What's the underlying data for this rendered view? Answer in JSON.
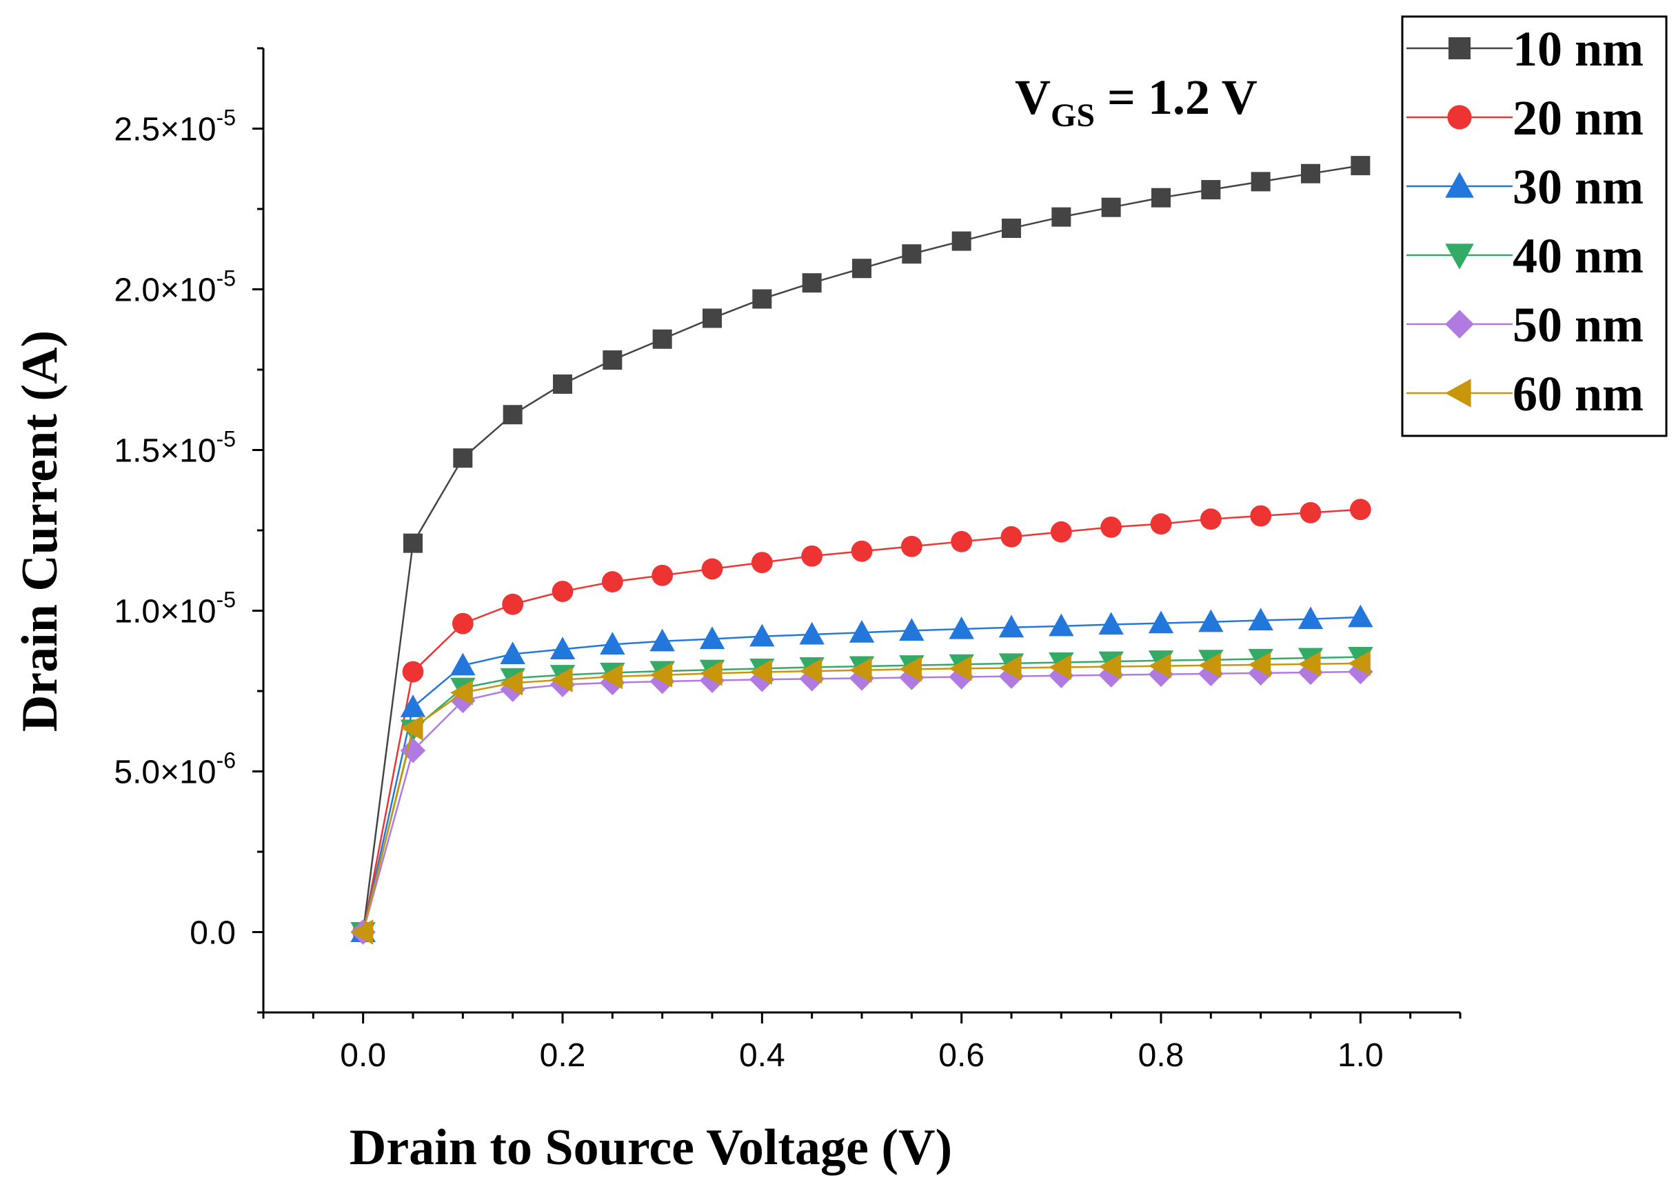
{
  "chart_data": {
    "type": "line",
    "title": "",
    "xlabel": "Drain to Source Voltage (V)",
    "ylabel": "Drain Current (A)",
    "xlim": [
      -0.1,
      1.1
    ],
    "ylim": [
      -2.5e-06,
      2.75e-05
    ],
    "x_ticks": [
      {
        "value": 0.0,
        "label": "0.0"
      },
      {
        "value": 0.2,
        "label": "0.2"
      },
      {
        "value": 0.4,
        "label": "0.4"
      },
      {
        "value": 0.6,
        "label": "0.6"
      },
      {
        "value": 0.8,
        "label": "0.8"
      },
      {
        "value": 1.0,
        "label": "1.0"
      }
    ],
    "y_ticks": [
      {
        "value": 0,
        "mantissa": "0.0",
        "exponent": ""
      },
      {
        "value": 5e-06,
        "mantissa": "5.0×10",
        "exponent": "-6"
      },
      {
        "value": 1e-05,
        "mantissa": "1.0×10",
        "exponent": "-5"
      },
      {
        "value": 1.5e-05,
        "mantissa": "1.5×10",
        "exponent": "-5"
      },
      {
        "value": 2e-05,
        "mantissa": "2.0×10",
        "exponent": "-5"
      },
      {
        "value": 2.5e-05,
        "mantissa": "2.5×10",
        "exponent": "-5"
      }
    ],
    "annotation": {
      "main": "V",
      "sub": "GS",
      "rest": " = 1.2 V"
    },
    "legend_position": "top-right",
    "x": [
      0,
      0.05,
      0.1,
      0.15,
      0.2,
      0.25,
      0.3,
      0.35,
      0.4,
      0.45,
      0.5,
      0.55,
      0.6,
      0.65,
      0.7,
      0.75,
      0.8,
      0.85,
      0.9,
      0.95,
      1.0
    ],
    "series": [
      {
        "name": "10 nm",
        "color": "#444444",
        "marker": "square",
        "values": [
          0,
          1.21e-05,
          1.475e-05,
          1.61e-05,
          1.705e-05,
          1.78e-05,
          1.845e-05,
          1.91e-05,
          1.97e-05,
          2.02e-05,
          2.065e-05,
          2.11e-05,
          2.15e-05,
          2.19e-05,
          2.225e-05,
          2.255e-05,
          2.285e-05,
          2.31e-05,
          2.335e-05,
          2.36e-05,
          2.385e-05
        ]
      },
      {
        "name": "20 nm",
        "color": "#ee3333",
        "marker": "circle",
        "values": [
          0,
          8.1e-06,
          9.6e-06,
          1.02e-05,
          1.06e-05,
          1.09e-05,
          1.11e-05,
          1.13e-05,
          1.15e-05,
          1.17e-05,
          1.185e-05,
          1.2e-05,
          1.215e-05,
          1.23e-05,
          1.245e-05,
          1.26e-05,
          1.27e-05,
          1.285e-05,
          1.295e-05,
          1.305e-05,
          1.315e-05
        ]
      },
      {
        "name": "30 nm",
        "color": "#2277dd",
        "marker": "triangle-up",
        "values": [
          0,
          7e-06,
          8.3e-06,
          8.65e-06,
          8.8e-06,
          8.95e-06,
          9.05e-06,
          9.12e-06,
          9.2e-06,
          9.26e-06,
          9.32e-06,
          9.38e-06,
          9.43e-06,
          9.48e-06,
          9.52e-06,
          9.57e-06,
          9.61e-06,
          9.65e-06,
          9.7e-06,
          9.74e-06,
          9.8e-06
        ]
      },
      {
        "name": "40 nm",
        "color": "#33aa66",
        "marker": "triangle-down",
        "values": [
          0,
          6.3e-06,
          7.6e-06,
          7.9e-06,
          8e-06,
          8.07e-06,
          8.12e-06,
          8.16e-06,
          8.2e-06,
          8.24e-06,
          8.27e-06,
          8.3e-06,
          8.33e-06,
          8.36e-06,
          8.39e-06,
          8.42e-06,
          8.45e-06,
          8.47e-06,
          8.5e-06,
          8.53e-06,
          8.56e-06
        ]
      },
      {
        "name": "50 nm",
        "color": "#b07ae0",
        "marker": "diamond",
        "values": [
          0,
          5.65e-06,
          7.2e-06,
          7.55e-06,
          7.7e-06,
          7.76e-06,
          7.8e-06,
          7.83e-06,
          7.86e-06,
          7.88e-06,
          7.9e-06,
          7.92e-06,
          7.94e-06,
          7.96e-06,
          7.98e-06,
          8e-06,
          8.02e-06,
          8.04e-06,
          8.06e-06,
          8.08e-06,
          8.1e-06
        ]
      },
      {
        "name": "60 nm",
        "color": "#c8960a",
        "marker": "triangle-left",
        "values": [
          0,
          6.35e-06,
          7.45e-06,
          7.75e-06,
          7.85e-06,
          7.95e-06,
          8e-06,
          8.05e-06,
          8.09e-06,
          8.12e-06,
          8.15e-06,
          8.18e-06,
          8.2e-06,
          8.22e-06,
          8.24e-06,
          8.26e-06,
          8.28e-06,
          8.3e-06,
          8.32e-06,
          8.34e-06,
          8.36e-06
        ]
      }
    ]
  }
}
